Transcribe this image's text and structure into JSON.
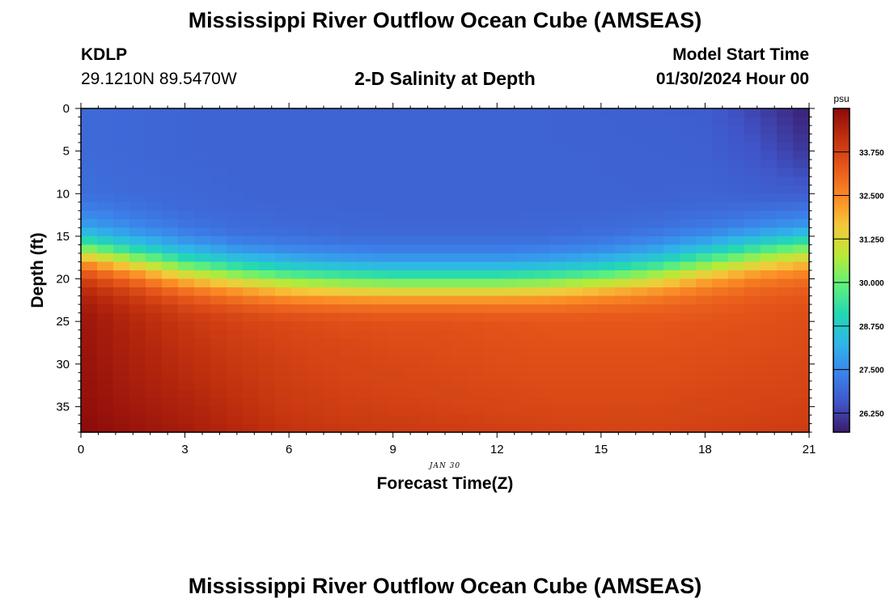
{
  "title": "Mississippi River Outflow Ocean Cube (AMSEAS)",
  "footer_title": "Mississippi River Outflow Ocean Cube (AMSEAS)",
  "station": {
    "id": "KDLP",
    "coords": "29.1210N  89.5470W"
  },
  "model_start": {
    "label": "Model Start Time",
    "value": "01/30/2024 Hour 00"
  },
  "chart_data": {
    "type": "heatmap",
    "title": "2-D Salinity at Depth",
    "xlabel": "Forecast Time(Z)",
    "ylabel": "Depth (ft)",
    "date_label": "JAN 30",
    "xlim": [
      0,
      21
    ],
    "ylim": [
      0,
      38
    ],
    "x_ticks": [
      0,
      3,
      6,
      9,
      12,
      15,
      18,
      21
    ],
    "y_ticks": [
      0,
      5,
      10,
      15,
      20,
      25,
      30,
      35
    ],
    "y_inverted": true,
    "colorbar": {
      "unit": "psu",
      "ticks": [
        "33.750",
        "32.500",
        "31.250",
        "30.000",
        "28.750",
        "27.500",
        "26.250"
      ],
      "range": [
        25.7,
        35.0
      ],
      "colors": [
        "#3b1a6b",
        "#3f55c8",
        "#3c82ea",
        "#2fb5ea",
        "#22d7b5",
        "#5ff07a",
        "#b8ea38",
        "#f4c93a",
        "#fb8a25",
        "#e7581b",
        "#c1300e",
        "#8b0a0a"
      ]
    },
    "grid_x": [
      0,
      1.5,
      3,
      4.5,
      6,
      7.5,
      9,
      10.5,
      12,
      13.5,
      15,
      16.5,
      18,
      19.5,
      21
    ],
    "grid_depth": [
      0,
      5,
      10,
      12,
      14,
      15,
      16,
      17,
      18,
      19,
      20,
      21,
      22,
      23,
      24,
      25,
      28,
      32,
      35,
      38
    ],
    "salinity_profiles": [
      [
        26.95,
        26.95,
        27.05,
        27.4,
        28.0,
        28.8,
        29.8,
        31.0,
        32.3,
        33.2,
        33.8,
        34.2,
        34.45,
        34.6,
        34.7,
        34.75,
        34.8,
        34.85,
        34.9,
        35.0
      ],
      [
        26.9,
        26.9,
        26.95,
        27.15,
        27.55,
        28.0,
        28.7,
        29.7,
        30.9,
        32.0,
        32.9,
        33.5,
        33.9,
        34.1,
        34.25,
        34.35,
        34.45,
        34.55,
        34.65,
        34.8
      ],
      [
        26.85,
        26.85,
        26.9,
        26.95,
        27.2,
        27.5,
        27.95,
        28.6,
        29.6,
        30.7,
        31.7,
        32.6,
        33.2,
        33.6,
        33.85,
        34.0,
        34.15,
        34.3,
        34.45,
        34.6
      ],
      [
        26.8,
        26.8,
        26.85,
        26.9,
        27.0,
        27.15,
        27.5,
        28.0,
        28.8,
        29.8,
        30.9,
        31.9,
        32.7,
        33.2,
        33.55,
        33.75,
        33.9,
        34.05,
        34.2,
        34.35
      ],
      [
        26.8,
        26.8,
        26.8,
        26.85,
        26.95,
        27.05,
        27.3,
        27.7,
        28.35,
        29.2,
        30.2,
        31.3,
        32.2,
        32.9,
        33.35,
        33.6,
        33.75,
        33.85,
        33.95,
        34.1
      ],
      [
        26.8,
        26.8,
        26.8,
        26.85,
        26.9,
        27.0,
        27.2,
        27.55,
        28.1,
        28.9,
        29.9,
        31.0,
        32.0,
        32.75,
        33.25,
        33.5,
        33.65,
        33.75,
        33.85,
        34.0
      ],
      [
        26.8,
        26.8,
        26.8,
        26.82,
        26.88,
        26.98,
        27.15,
        27.45,
        27.95,
        28.7,
        29.7,
        30.8,
        31.9,
        32.7,
        33.2,
        33.45,
        33.6,
        33.7,
        33.8,
        33.95
      ],
      [
        26.8,
        26.8,
        26.8,
        26.82,
        26.88,
        26.98,
        27.15,
        27.45,
        27.95,
        28.7,
        29.7,
        30.8,
        31.9,
        32.7,
        33.2,
        33.45,
        33.55,
        33.65,
        33.75,
        33.9
      ],
      [
        26.8,
        26.8,
        26.8,
        26.82,
        26.88,
        26.98,
        27.15,
        27.45,
        27.95,
        28.7,
        29.7,
        30.8,
        31.9,
        32.7,
        33.15,
        33.4,
        33.5,
        33.6,
        33.7,
        33.85
      ],
      [
        26.8,
        26.8,
        26.8,
        26.82,
        26.9,
        27.0,
        27.2,
        27.55,
        28.1,
        28.9,
        29.9,
        31.0,
        32.0,
        32.7,
        33.15,
        33.35,
        33.45,
        33.55,
        33.65,
        33.8
      ],
      [
        26.78,
        26.8,
        26.8,
        26.85,
        26.95,
        27.1,
        27.35,
        27.75,
        28.4,
        29.3,
        30.3,
        31.4,
        32.3,
        32.85,
        33.2,
        33.35,
        33.45,
        33.55,
        33.65,
        33.75
      ],
      [
        26.75,
        26.78,
        26.8,
        26.9,
        27.05,
        27.3,
        27.65,
        28.2,
        29.0,
        30.0,
        31.0,
        31.9,
        32.6,
        33.0,
        33.25,
        33.35,
        33.45,
        33.55,
        33.65,
        33.75
      ],
      [
        26.7,
        26.75,
        26.82,
        26.95,
        27.25,
        27.65,
        28.2,
        29.0,
        30.0,
        31.0,
        31.9,
        32.55,
        32.95,
        33.2,
        33.3,
        33.4,
        33.5,
        33.6,
        33.7,
        33.8
      ],
      [
        26.3,
        26.55,
        26.75,
        27.05,
        27.55,
        28.2,
        29.0,
        30.0,
        31.0,
        31.9,
        32.6,
        33.0,
        33.2,
        33.35,
        33.4,
        33.45,
        33.55,
        33.65,
        33.75,
        33.85
      ],
      [
        25.75,
        26.1,
        26.7,
        27.2,
        27.9,
        28.8,
        29.8,
        30.8,
        31.7,
        32.4,
        32.9,
        33.2,
        33.35,
        33.45,
        33.5,
        33.55,
        33.6,
        33.7,
        33.8,
        33.9
      ]
    ]
  }
}
